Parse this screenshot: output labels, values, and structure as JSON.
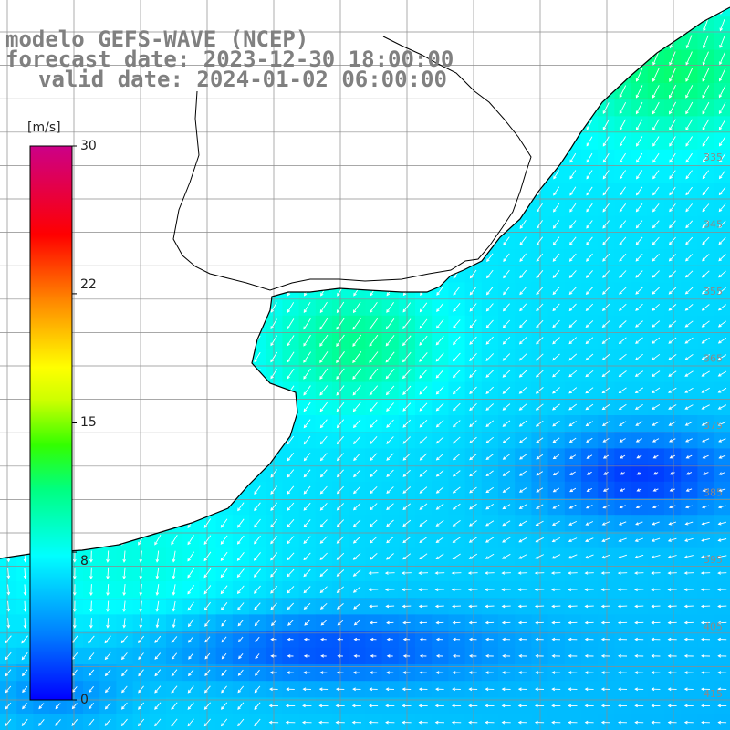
{
  "title": {
    "line1": "modelo GEFS-WAVE (NCEP)",
    "line2": "forecast date: 2023-12-30 18:00:00",
    "line3": "valid date: 2024-01-02 06:00:00"
  },
  "colorbar": {
    "unit": "[m/s]",
    "min": 0,
    "max": 30,
    "tick_values": [
      30,
      22,
      15,
      8,
      0
    ],
    "tick_labels": [
      "30",
      "22",
      "15",
      "8",
      "0"
    ],
    "colors": [
      "#0000ff",
      "#0066ff",
      "#00ccff",
      "#00ffee",
      "#00ff66",
      "#33ff00",
      "#ccff00",
      "#ffff00",
      "#ffaa00",
      "#ff4400",
      "#ff0000",
      "#ff0066",
      "#cc0088"
    ]
  },
  "grid": {
    "right_labels": [
      "335",
      "345",
      "355",
      "365",
      "375",
      "385",
      "395",
      "405",
      "415"
    ]
  },
  "colors": {
    "land": "#ffffff",
    "coast": "#000000",
    "gridline": "#8c8c8c",
    "arrow": "#ffffff",
    "title": "#808080"
  }
}
